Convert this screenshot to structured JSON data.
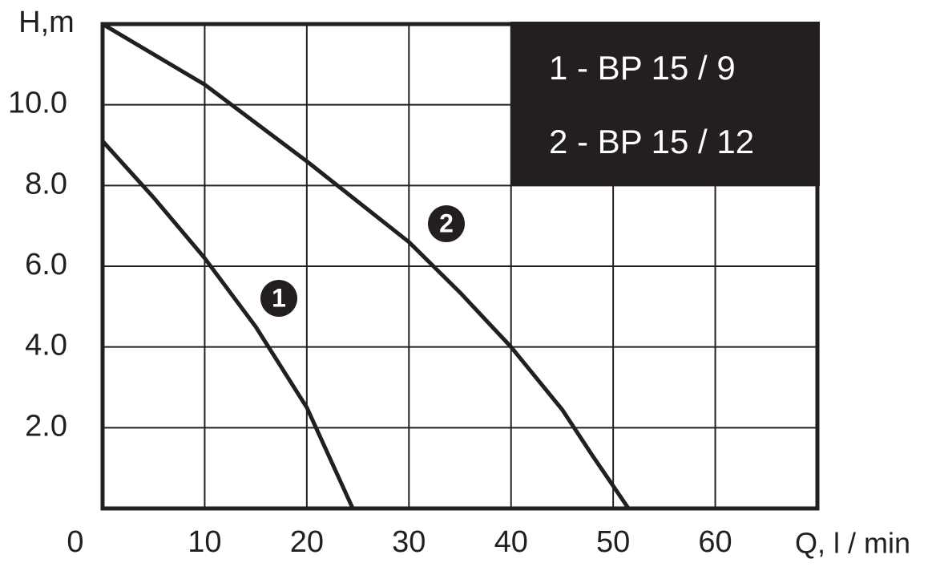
{
  "chart_data": {
    "type": "line",
    "x_label": "Q, l / min",
    "y_label": "H,m",
    "xlim": [
      0,
      70
    ],
    "xticks": [
      0,
      10,
      20,
      30,
      40,
      50,
      60
    ],
    "ylim": [
      0,
      12
    ],
    "yticks": [
      {
        "value": 2,
        "label": "2.0"
      },
      {
        "value": 4,
        "label": "4.0"
      },
      {
        "value": 6,
        "label": "6.0"
      },
      {
        "value": 8,
        "label": "8.0"
      },
      {
        "value": 10,
        "label": "10.0"
      }
    ],
    "grid": true,
    "legend": "top-right",
    "series": [
      {
        "name": "1 -  BP 15 / 9",
        "color": "#231f20",
        "x": [
          0,
          5,
          10,
          15,
          20,
          24.5
        ],
        "values": [
          9.1,
          7.7,
          6.2,
          4.5,
          2.5,
          0
        ]
      },
      {
        "name": "2 -  BP 15 / 12",
        "color": "#231f20",
        "x": [
          0,
          10,
          20,
          30,
          35,
          40,
          45,
          48,
          51.5
        ],
        "values": [
          12,
          10.5,
          8.6,
          6.6,
          5.35,
          4.0,
          2.45,
          1.3,
          0
        ]
      }
    ],
    "annotations": [
      "1",
      "2"
    ]
  }
}
